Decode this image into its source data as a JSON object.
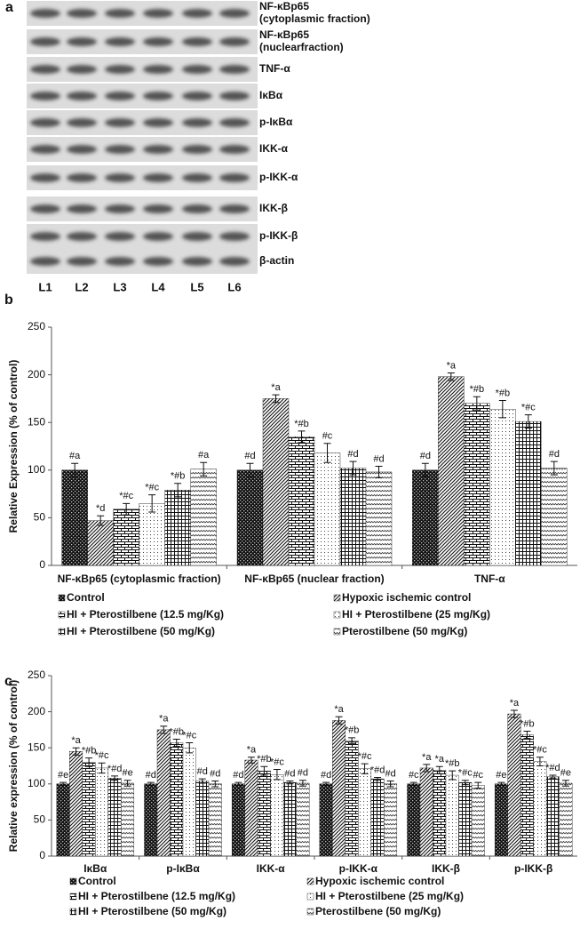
{
  "blot": {
    "panel_label": "a",
    "rows": [
      [
        "NF-κBp65",
        "(cytoplasmic fraction)"
      ],
      [
        "NF-κBp65",
        "(nuclearfraction)"
      ],
      [
        "TNF-α"
      ],
      [
        "IκBα"
      ],
      [
        "p-IκBα"
      ],
      [
        "IKK-α"
      ],
      [
        "p-IKK-α"
      ],
      [
        "IKK-β"
      ],
      [
        "p-IKK-β"
      ],
      [
        "β-actin"
      ]
    ],
    "lanes": [
      "L1",
      "L2",
      "L3",
      "L4",
      "L5",
      "L6"
    ]
  },
  "chart_data": [
    {
      "type": "bar",
      "panel_label": "b",
      "ylabel": "Relative Expression (% of control)",
      "categories": [
        "NF-κBp65 (cytoplasmic fraction)",
        "NF-κBp65 (nuclear fraction)",
        "TNF-α"
      ],
      "ylim": [
        0,
        250
      ],
      "yticks": [
        0,
        50,
        100,
        150,
        200,
        250
      ],
      "series": [
        {
          "name": "Control",
          "color": "#111111",
          "pattern": "checker",
          "values": [
            100,
            100,
            100
          ],
          "errors": [
            7,
            7,
            7
          ],
          "annotations": [
            "#a",
            "#d",
            "#d"
          ]
        },
        {
          "name": "Hypoxic ischemic control",
          "color": "#111111",
          "pattern": "diagonal",
          "values": [
            47,
            175,
            198
          ],
          "errors": [
            5,
            4,
            4
          ],
          "annotations": [
            "*d",
            "*a",
            "*a"
          ]
        },
        {
          "name": "HI + Pterostilbene (12.5 mg/Kg)",
          "color": "#111111",
          "pattern": "brick",
          "values": [
            59,
            135,
            170
          ],
          "errors": [
            6,
            6,
            7
          ],
          "annotations": [
            "*#c",
            "*#b",
            "*#b"
          ]
        },
        {
          "name": "HI + Pterostilbene (25 mg/Kg)",
          "color": "#111111",
          "pattern": "dots",
          "values": [
            65,
            118,
            164
          ],
          "errors": [
            9,
            10,
            9
          ],
          "annotations": [
            "*#c",
            "#c",
            "*#b"
          ]
        },
        {
          "name": "HI + Pterostilbene (50 mg/Kg)",
          "color": "#111111",
          "pattern": "grid",
          "values": [
            79,
            102,
            151
          ],
          "errors": [
            7,
            7,
            7
          ],
          "annotations": [
            "*#b",
            "#d",
            "*#c"
          ]
        },
        {
          "name": "Pterostilbene (50 mg/Kg)",
          "color": "#111111",
          "pattern": "wave",
          "values": [
            101,
            98,
            102
          ],
          "errors": [
            7,
            6,
            7
          ],
          "annotations": [
            "#a",
            "#d",
            "#d"
          ]
        }
      ]
    },
    {
      "type": "bar",
      "panel_label": "c",
      "ylabel": "Relative expression (% of control)",
      "categories": [
        "IκBα",
        "p-IκBα",
        "IKK-α",
        "p-IKK-α",
        "IKK-β",
        "p-IKK-β"
      ],
      "ylim": [
        0,
        250
      ],
      "yticks": [
        0,
        50,
        100,
        150,
        200,
        250
      ],
      "series": [
        {
          "name": "Control",
          "color": "#111111",
          "pattern": "checker",
          "values": [
            100,
            100,
            100,
            100,
            100,
            100
          ],
          "errors": [
            2,
            2,
            2,
            2,
            2,
            2
          ],
          "annotations": [
            "#e",
            "#d",
            "#d",
            "#d",
            "#c",
            "#e"
          ]
        },
        {
          "name": "Hypoxic ischemic control",
          "color": "#111111",
          "pattern": "diagonal",
          "values": [
            145,
            175,
            133,
            188,
            122,
            197
          ],
          "errors": [
            5,
            5,
            4,
            5,
            5,
            5
          ],
          "annotations": [
            "*a",
            "*a",
            "*a",
            "*a",
            "*a",
            "*a"
          ]
        },
        {
          "name": "HI + Pterostilbene (12.5 mg/Kg)",
          "color": "#111111",
          "pattern": "brick",
          "values": [
            130,
            157,
            118,
            160,
            119,
            168
          ],
          "errors": [
            6,
            5,
            6,
            4,
            5,
            5
          ],
          "annotations": [
            "*#b",
            "*#b",
            "*#b",
            "*#b",
            "*a",
            "*#b"
          ]
        },
        {
          "name": "HI + Pterostilbene (25 mg/Kg)",
          "color": "#111111",
          "pattern": "dots",
          "values": [
            122,
            150,
            113,
            121,
            112,
            131
          ],
          "errors": [
            7,
            7,
            7,
            7,
            6,
            6
          ],
          "annotations": [
            "*#c",
            "*#c",
            "*#c",
            "*#c",
            "*#b",
            "*#c"
          ]
        },
        {
          "name": "HI + Pterostilbene (50 mg/Kg)",
          "color": "#111111",
          "pattern": "grid",
          "values": [
            108,
            104,
            102,
            107,
            102,
            110
          ],
          "errors": [
            3,
            3,
            2,
            2,
            3,
            2
          ],
          "annotations": [
            "*#d",
            "#d",
            "#d",
            "*#d",
            "*#c",
            "*#d"
          ]
        },
        {
          "name": "Pterostilbene (50 mg/Kg)",
          "color": "#111111",
          "pattern": "wave",
          "values": [
            101,
            100,
            101,
            100,
            98,
            101
          ],
          "errors": [
            4,
            4,
            4,
            4,
            4,
            4
          ],
          "annotations": [
            "#e",
            "#d",
            "#d",
            "#d",
            "#c",
            "#e"
          ]
        }
      ]
    }
  ]
}
